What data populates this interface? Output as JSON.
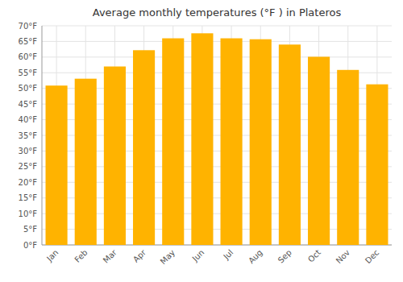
{
  "chart_data": {
    "type": "bar",
    "title": "Average monthly temperatures (°F ) in Plateros",
    "categories": [
      "Jan",
      "Feb",
      "Mar",
      "Apr",
      "May",
      "Jun",
      "Jul",
      "Aug",
      "Sep",
      "Oct",
      "Nov",
      "Dec"
    ],
    "values": [
      50.9,
      53.1,
      57.0,
      62.2,
      66.0,
      67.6,
      66.0,
      65.7,
      64.0,
      60.1,
      55.9,
      51.3
    ],
    "color": "#FFB300",
    "ylim": [
      0,
      70
    ],
    "yticks": [
      {
        "value": 0,
        "label": "0°F"
      },
      {
        "value": 5,
        "label": "5°F"
      },
      {
        "value": 10,
        "label": "10°F"
      },
      {
        "value": 15,
        "label": "15°F"
      },
      {
        "value": 20,
        "label": "20°F"
      },
      {
        "value": 25,
        "label": "25°F"
      },
      {
        "value": 30,
        "label": "30°F"
      },
      {
        "value": 35,
        "label": "35°F"
      },
      {
        "value": 40,
        "label": "40°F"
      },
      {
        "value": 45,
        "label": "45°F"
      },
      {
        "value": 50,
        "label": "50°F"
      },
      {
        "value": 55,
        "label": "55°F"
      },
      {
        "value": 60,
        "label": "60°F"
      },
      {
        "value": 65,
        "label": "65°F"
      },
      {
        "value": 70,
        "label": "70°F"
      }
    ],
    "grid": true
  }
}
